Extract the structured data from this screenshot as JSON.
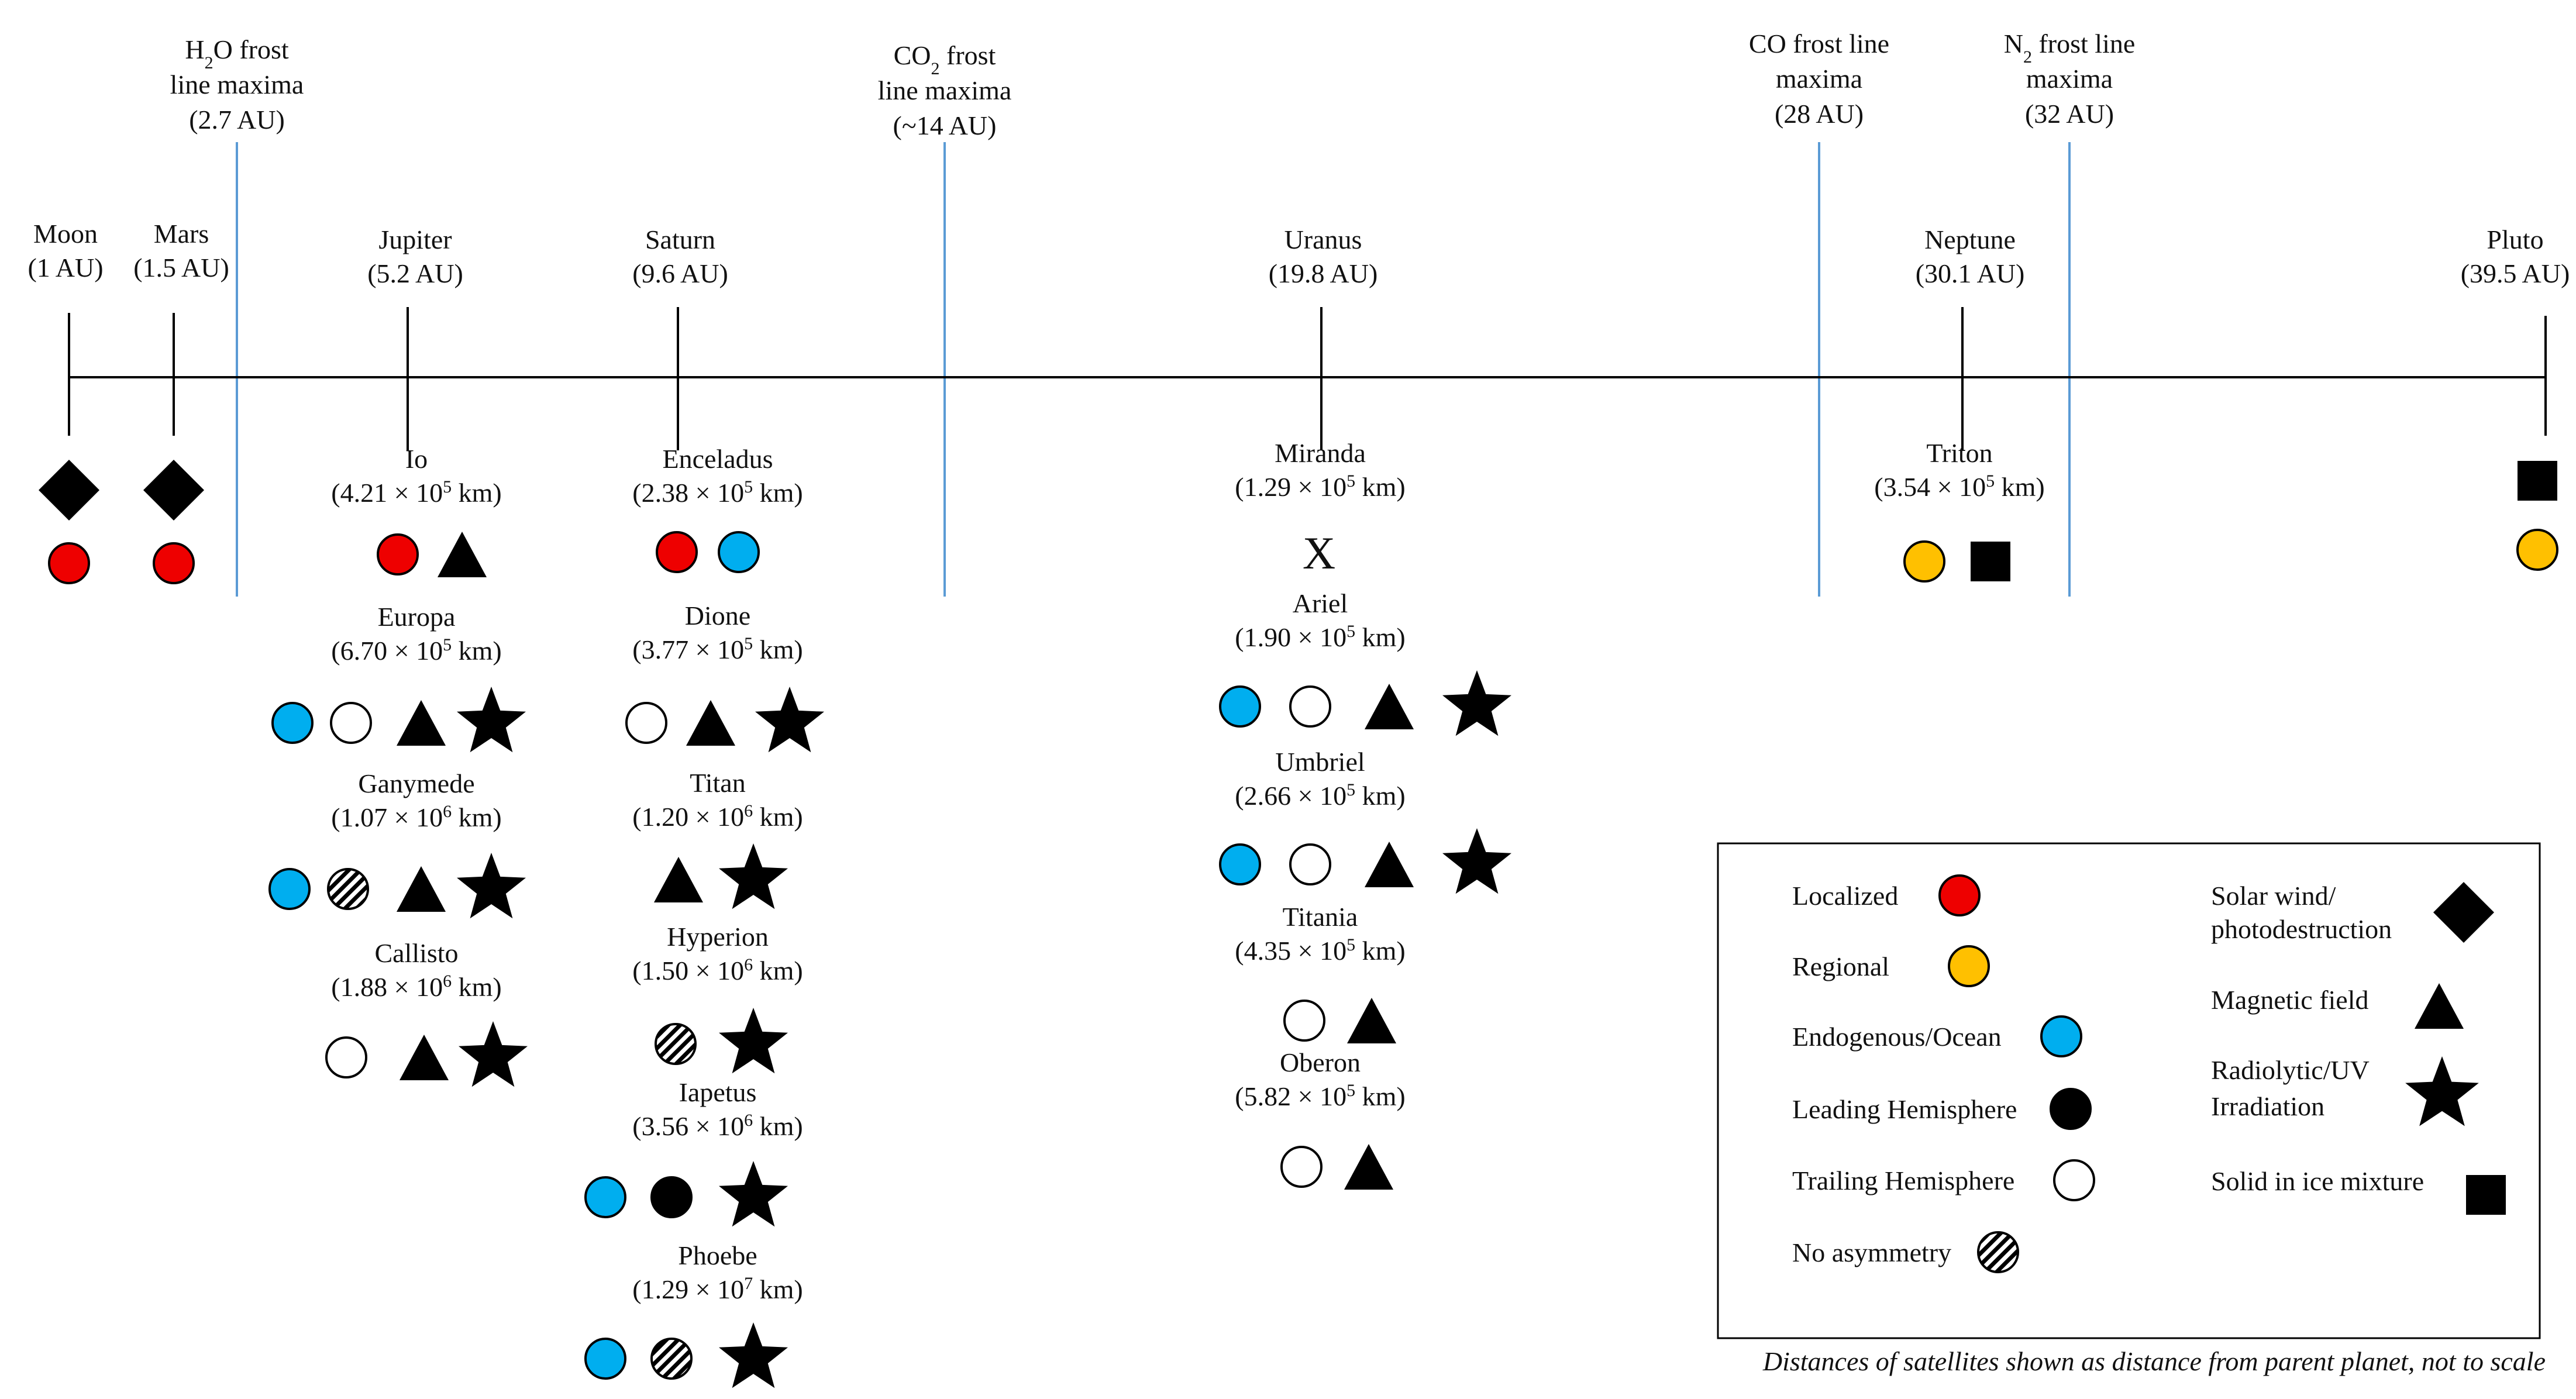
{
  "frost_lines": [
    {
      "id": "h2o",
      "lines": [
        [
          "H",
          {
            "sub": "2"
          },
          "O frost"
        ],
        [
          "line maxima"
        ],
        [
          "(2.7 AU)"
        ]
      ]
    },
    {
      "id": "co2",
      "lines": [
        [
          "CO",
          {
            "sub": "2"
          },
          " frost"
        ],
        [
          "line maxima"
        ],
        [
          "(~14 AU)"
        ]
      ]
    },
    {
      "id": "co",
      "lines": [
        [
          "CO frost line"
        ],
        [
          "maxima"
        ],
        [
          "(28 AU)"
        ]
      ]
    },
    {
      "id": "n2",
      "lines": [
        [
          "N",
          {
            "sub": "2"
          },
          " frost line"
        ],
        [
          "maxima"
        ],
        [
          "(32 AU)"
        ]
      ]
    }
  ],
  "bodies": [
    {
      "name": "Moon",
      "dist": "(1 AU)",
      "symbols": [
        [
          "diamond"
        ],
        [
          "red"
        ]
      ]
    },
    {
      "name": "Mars",
      "dist": "(1.5 AU)",
      "symbols": [
        [
          "diamond"
        ],
        [
          "red"
        ]
      ]
    },
    {
      "name": "Jupiter",
      "dist": "(5.2 AU)",
      "moons": [
        {
          "name": "Io",
          "mant": "4.21",
          "exp": "5",
          "symbols": [
            "red",
            "triangle"
          ]
        },
        {
          "name": "Europa",
          "mant": "6.70",
          "exp": "5",
          "symbols": [
            "blue",
            "white",
            "triangle",
            "star"
          ]
        },
        {
          "name": "Ganymede",
          "mant": "1.07",
          "exp": "6",
          "symbols": [
            "blue",
            "hatch",
            "triangle",
            "star"
          ]
        },
        {
          "name": "Callisto",
          "mant": "1.88",
          "exp": "6",
          "symbols": [
            "white",
            "triangle",
            "star"
          ]
        }
      ]
    },
    {
      "name": "Saturn",
      "dist": "(9.6 AU)",
      "moons": [
        {
          "name": "Enceladus",
          "mant": "2.38",
          "exp": "5",
          "symbols": [
            "red",
            "blue"
          ]
        },
        {
          "name": "Dione",
          "mant": "3.77",
          "exp": "5",
          "symbols": [
            "white",
            "triangle",
            "star"
          ]
        },
        {
          "name": "Titan",
          "mant": "1.20",
          "exp": "6",
          "symbols": [
            "triangle",
            "star"
          ]
        },
        {
          "name": "Hyperion",
          "mant": "1.50",
          "exp": "6",
          "symbols": [
            "hatch",
            "star"
          ]
        },
        {
          "name": "Iapetus",
          "mant": "3.56",
          "exp": "6",
          "symbols": [
            "blue",
            "black",
            "star"
          ]
        },
        {
          "name": "Phoebe",
          "mant": "1.29",
          "exp": "7",
          "symbols": [
            "blue",
            "hatch",
            "star"
          ]
        }
      ]
    },
    {
      "name": "Uranus",
      "dist": "(19.8 AU)",
      "moons": [
        {
          "name": "Miranda",
          "mant": "1.29",
          "exp": "5",
          "symbols": [
            "x"
          ]
        },
        {
          "name": "Ariel",
          "mant": "1.90",
          "exp": "5",
          "symbols": [
            "blue",
            "white",
            "triangle",
            "star"
          ]
        },
        {
          "name": "Umbriel",
          "mant": "2.66",
          "exp": "5",
          "symbols": [
            "blue",
            "white",
            "triangle",
            "star"
          ]
        },
        {
          "name": "Titania",
          "mant": "4.35",
          "exp": "5",
          "symbols": [
            "white",
            "triangle"
          ]
        },
        {
          "name": "Oberon",
          "mant": "5.82",
          "exp": "5",
          "symbols": [
            "white",
            "triangle"
          ]
        }
      ]
    },
    {
      "name": "Neptune",
      "dist": "(30.1 AU)",
      "moons": [
        {
          "name": "Triton",
          "mant": "3.54",
          "exp": "5",
          "symbols": [
            "yellow",
            "square"
          ]
        }
      ]
    },
    {
      "name": "Pluto",
      "dist": "(39.5 AU)",
      "symbols": [
        [
          "square"
        ],
        [
          "yellow"
        ]
      ]
    }
  ],
  "moon_dist_unit": " km)",
  "times_sign": " × 10",
  "x_mark": "X",
  "legend": [
    {
      "text": [
        "Localized"
      ],
      "symbol": "red"
    },
    {
      "text": [
        "Regional"
      ],
      "symbol": "yellow"
    },
    {
      "text": [
        "Endogenous/Ocean"
      ],
      "symbol": "blue"
    },
    {
      "text": [
        "Leading Hemisphere"
      ],
      "symbol": "black"
    },
    {
      "text": [
        "Trailing Hemisphere"
      ],
      "symbol": "white"
    },
    {
      "text": [
        "No asymmetry"
      ],
      "symbol": "hatch"
    },
    {
      "text": [
        "Solar wind/",
        "photodestruction"
      ],
      "symbol": "diamond"
    },
    {
      "text": [
        "Magnetic field"
      ],
      "symbol": "triangle"
    },
    {
      "text": [
        "Radiolytic/UV",
        "Irradiation"
      ],
      "symbol": "star"
    },
    {
      "text": [
        "Solid in ice mixture"
      ],
      "symbol": "square"
    }
  ],
  "footnote": "Distances of satellites shown as distance from parent planet, not to scale",
  "colors": {
    "red": "#ee0000",
    "yellow": "#ffc000",
    "blue": "#00aeef",
    "frost_line": "#5b9bd5",
    "ink": "#000000"
  }
}
